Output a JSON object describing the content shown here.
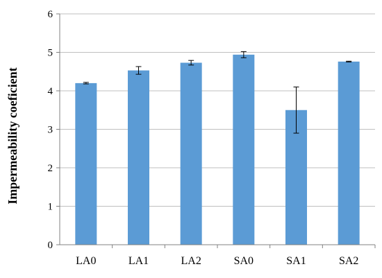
{
  "chart_data": {
    "type": "bar",
    "title": "",
    "xlabel": "",
    "ylabel": "Impermeability coeficient",
    "categories": [
      "LA0",
      "LA1",
      "LA2",
      "SA0",
      "SA1",
      "SA2"
    ],
    "values": [
      4.2,
      4.53,
      4.73,
      4.94,
      3.5,
      4.76
    ],
    "errors": [
      0.02,
      0.1,
      0.06,
      0.08,
      0.6,
      0.01
    ],
    "ylim": [
      0,
      6
    ],
    "yticks": [
      "0",
      "1",
      "2",
      "3",
      "4",
      "5",
      "6"
    ],
    "grid": true,
    "legend": "none",
    "bar_color": "#5B9BD5",
    "grid_color": "#BFBFBF",
    "axis_color": "#808080"
  }
}
